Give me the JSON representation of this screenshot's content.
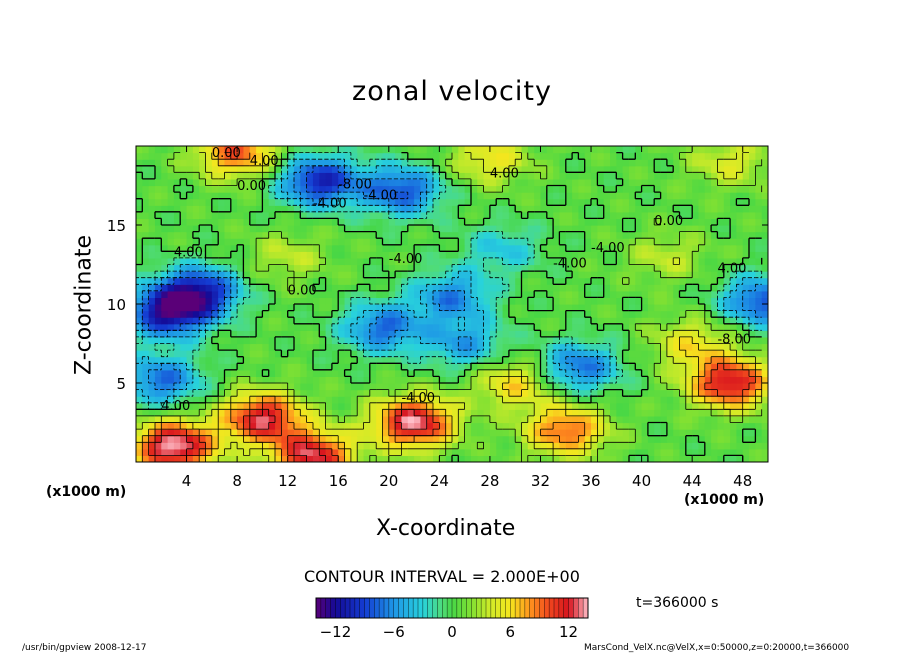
{
  "chart_data": {
    "type": "heatmap",
    "title": "zonal velocity",
    "xlabel": "X-coordinate",
    "ylabel": "Z-coordinate",
    "x_unit": "(x1000 m)",
    "x_ticks": [
      4,
      8,
      12,
      16,
      20,
      24,
      28,
      32,
      36,
      40,
      44,
      48
    ],
    "y_ticks": [
      5,
      10,
      15
    ],
    "xlim": [
      0,
      50
    ],
    "ylim": [
      0,
      20
    ],
    "contour_interval_text": "CONTOUR INTERVAL = 2.000E+00",
    "contour_labels": [
      "4.00",
      "0.00",
      "-8.00",
      "4.00",
      "-4.00",
      "-4.00",
      "0.00",
      "-4.00",
      "4.00",
      "-4.00",
      "0.00",
      "4.00",
      "-4.00",
      "0.00",
      "-4.00",
      "-8.00",
      "4.00"
    ],
    "colorbar": {
      "range": [
        -14,
        14
      ],
      "ticks": [
        -12,
        -6,
        0,
        6,
        12
      ]
    },
    "time_label": "t=366000 s",
    "blobs": [
      {
        "x": 2.5,
        "z": 9.5,
        "value": -12
      },
      {
        "x": 5.0,
        "z": 10.8,
        "value": -11
      },
      {
        "x": 2.0,
        "z": 5.2,
        "value": -8
      },
      {
        "x": 14.5,
        "z": 17.8,
        "value": -11
      },
      {
        "x": 21.0,
        "z": 17.2,
        "value": -9
      },
      {
        "x": 19.5,
        "z": 8.5,
        "value": -8
      },
      {
        "x": 26.0,
        "z": 7.5,
        "value": -6
      },
      {
        "x": 25.0,
        "z": 10.5,
        "value": -7
      },
      {
        "x": 35.0,
        "z": 6.0,
        "value": -8
      },
      {
        "x": 49.5,
        "z": 10.2,
        "value": -9
      },
      {
        "x": 29.0,
        "z": 13.5,
        "value": -4
      },
      {
        "x": 12.0,
        "z": 13.0,
        "value": 3
      },
      {
        "x": 10.0,
        "z": 2.8,
        "value": 12
      },
      {
        "x": 22.0,
        "z": 2.5,
        "value": 13
      },
      {
        "x": 3.0,
        "z": 1.0,
        "value": 14
      },
      {
        "x": 14.0,
        "z": 0.4,
        "value": 12
      },
      {
        "x": 47.0,
        "z": 5.0,
        "value": 12
      },
      {
        "x": 34.0,
        "z": 2.0,
        "value": 9
      },
      {
        "x": 44.0,
        "z": 7.5,
        "value": 5
      },
      {
        "x": 8.0,
        "z": 19.6,
        "value": 9
      },
      {
        "x": 28.0,
        "z": 19.2,
        "value": 5
      },
      {
        "x": 47.0,
        "z": 19.0,
        "value": 4
      },
      {
        "x": 30.0,
        "z": 5.0,
        "value": 6
      },
      {
        "x": 42.0,
        "z": 13.0,
        "value": 3
      }
    ]
  },
  "footer": {
    "left": "/usr/bin/gpview   2008-12-17",
    "right": "MarsCond_VelX.nc@VelX,x=0:50000,z=0:20000,t=366000"
  }
}
